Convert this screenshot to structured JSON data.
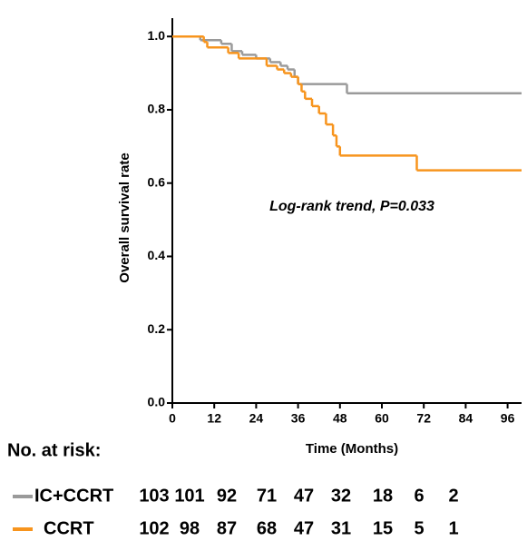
{
  "chart_data": {
    "type": "line",
    "step": true,
    "xlabel": "Time (Months)",
    "ylabel": "Overall survival rate",
    "annotation": "Log-rank trend, P=0.033",
    "xlim": [
      0,
      100
    ],
    "ylim": [
      0,
      1.05
    ],
    "xticks": [
      0,
      12,
      24,
      36,
      48,
      60,
      72,
      84,
      96
    ],
    "yticks": [
      {
        "value": 0,
        "label": "0.0"
      },
      {
        "value": 0.2,
        "label": "0.2"
      },
      {
        "value": 0.4,
        "label": "0.4"
      },
      {
        "value": 0.6,
        "label": "0.6"
      },
      {
        "value": 0.8,
        "label": "0.8"
      },
      {
        "value": 1,
        "label": "1.0"
      }
    ],
    "series": [
      {
        "name": "IC+CCRT",
        "color": "#9a9a9a",
        "x": [
          0,
          8,
          14,
          17,
          20,
          24,
          28,
          31,
          33,
          35,
          36,
          50,
          100
        ],
        "values": [
          1.0,
          0.99,
          0.98,
          0.96,
          0.95,
          0.94,
          0.93,
          0.92,
          0.91,
          0.89,
          0.87,
          0.845,
          0.845
        ]
      },
      {
        "name": "CCRT",
        "color": "#f7941d",
        "x": [
          0,
          9,
          10,
          16,
          19,
          27,
          30,
          32,
          34,
          36,
          37,
          38,
          40,
          42,
          44,
          46,
          47,
          48,
          70,
          100
        ],
        "values": [
          1.0,
          0.985,
          0.97,
          0.955,
          0.94,
          0.92,
          0.91,
          0.9,
          0.89,
          0.87,
          0.85,
          0.83,
          0.81,
          0.79,
          0.76,
          0.73,
          0.7,
          0.675,
          0.635,
          0.635
        ]
      }
    ],
    "risk_table": {
      "title": "No. at risk:",
      "rows": [
        {
          "name": "IC+CCRT",
          "values": [
            103,
            101,
            92,
            71,
            47,
            32,
            18,
            6,
            2
          ]
        },
        {
          "name": "CCRT",
          "values": [
            102,
            98,
            87,
            68,
            47,
            31,
            15,
            5,
            1
          ]
        }
      ]
    }
  }
}
